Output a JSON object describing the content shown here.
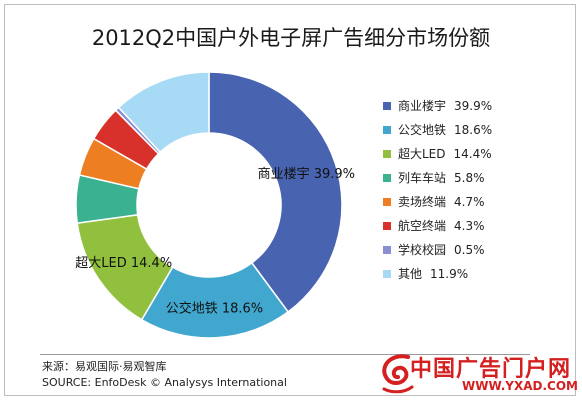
{
  "chart_data": {
    "type": "pie",
    "donut": true,
    "title": "2012Q2中国户外电子屏广告细分市场份额",
    "unit": "%",
    "slices": [
      {
        "label": "商业楼宇",
        "value": 39.9,
        "display": "39.9%",
        "color": "#4863b0"
      },
      {
        "label": "公交地铁",
        "value": 18.6,
        "display": "18.6%",
        "color": "#42a7cf"
      },
      {
        "label": "超大LED",
        "value": 14.4,
        "display": "14.4%",
        "color": "#90c03e"
      },
      {
        "label": "列车车站",
        "value": 5.8,
        "display": "5.8%",
        "color": "#3ab190"
      },
      {
        "label": "卖场终端",
        "value": 4.7,
        "display": "4.7%",
        "color": "#ee7e22"
      },
      {
        "label": "航空终端",
        "value": 4.3,
        "display": "4.3%",
        "color": "#d8302a"
      },
      {
        "label": "学校校园",
        "value": 0.5,
        "display": "0.5%",
        "color": "#8b8fd0"
      },
      {
        "label": "其他",
        "value": 11.9,
        "display": "11.9%",
        "color": "#a7daf4"
      }
    ],
    "labeled_slices": [
      0,
      1,
      2
    ],
    "legend_position": "right"
  },
  "source": {
    "line1": "来源：易观国际·易观智库",
    "line2": "SOURCE: EnfoDesk © Analysys International"
  },
  "watermark": {
    "text": "中国广告门户网",
    "url": "WWW.YXAD.COM"
  }
}
